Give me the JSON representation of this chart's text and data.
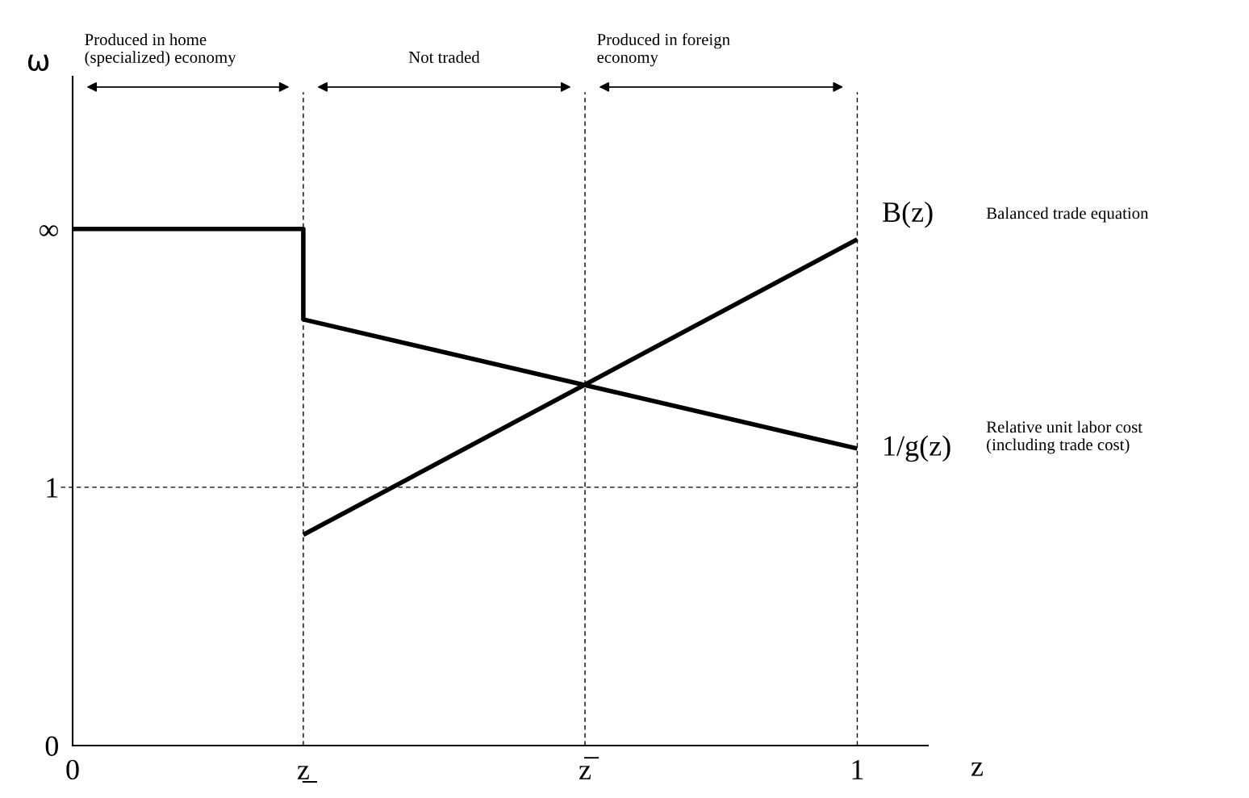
{
  "chart_data": {
    "type": "line",
    "xlabel": "z",
    "ylabel": "ω",
    "xlim": [
      0,
      1.09
    ],
    "ylim": [
      0,
      2.59
    ],
    "xticks": [
      0,
      {
        "value": 0.294,
        "label": "z̲"
      },
      {
        "value": 0.653,
        "label": "z̅"
      },
      1
    ],
    "yticks": [
      0,
      1,
      {
        "value": 2.0,
        "label": "∞"
      }
    ],
    "series": [
      {
        "name": "1/g(z)",
        "color": "#000000",
        "x": [
          0,
          0.294,
          0.294,
          1
        ],
        "values": [
          2.0,
          2.0,
          1.65,
          1.15
        ]
      },
      {
        "name": "B(z)",
        "color": "#000000",
        "x": [
          0.294,
          1
        ],
        "values": [
          0.816,
          1.96
        ]
      }
    ],
    "ref_lines": [
      {
        "axis": "y",
        "value": 1,
        "line_style": "dashed",
        "color": "#000000"
      },
      {
        "axis": "x",
        "value": 0.294,
        "line_style": "dashed",
        "color": "#000000"
      },
      {
        "axis": "x",
        "value": 0.653,
        "line_style": "dashed",
        "color": "#000000"
      },
      {
        "axis": "x",
        "value": 1,
        "line_style": "dashed",
        "color": "#000000"
      }
    ],
    "annotations": [
      "Produced in home\n(specialized) economy",
      "Not traded",
      "Produced in foreign\neconomy",
      "Relative unit labor cost\n(including trade cost)",
      "Balanced trade equation"
    ],
    "grid": false,
    "marker": "none",
    "line_style": "solid"
  }
}
